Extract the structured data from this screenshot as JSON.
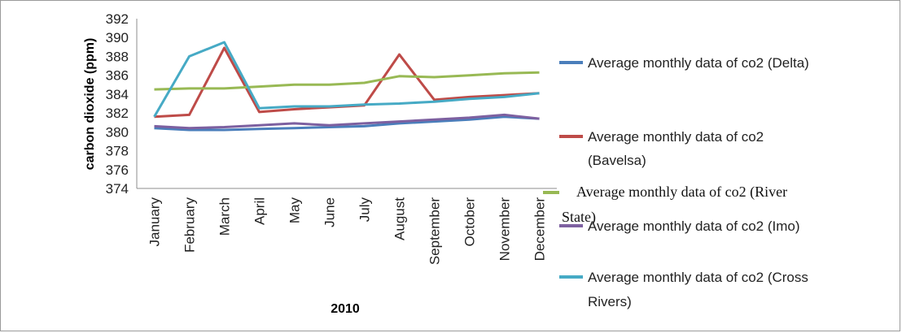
{
  "chart_data": {
    "type": "line",
    "title": "",
    "xlabel": "2010",
    "ylabel": "carbon dioxide (ppm)",
    "categories": [
      "January",
      "February",
      "March",
      "April",
      "May",
      "June",
      "July",
      "August",
      "September",
      "October",
      "November",
      "December"
    ],
    "ylim": [
      374,
      392
    ],
    "yticks": [
      374,
      376,
      378,
      380,
      382,
      384,
      386,
      388,
      390,
      392
    ],
    "grid": false,
    "legend_position": "right",
    "series": [
      {
        "name": "Average monthly data of co2 (Delta)",
        "color": "#4a7ebb",
        "values": [
          380.4,
          380.2,
          380.2,
          380.3,
          380.4,
          380.5,
          380.6,
          380.9,
          381.1,
          381.3,
          381.6,
          381.4
        ]
      },
      {
        "name": "Average monthly data of co2 (Bavelsa)",
        "color": "#be4b48",
        "values": [
          381.6,
          381.8,
          388.9,
          382.1,
          382.4,
          382.6,
          382.8,
          388.2,
          383.4,
          383.7,
          383.9,
          384.1
        ]
      },
      {
        "name": "Average monthly data of co2 (River State)",
        "color": "#98b954",
        "values": [
          384.5,
          384.6,
          384.6,
          384.8,
          385.0,
          385.0,
          385.2,
          385.9,
          385.8,
          386.0,
          386.2,
          386.3
        ]
      },
      {
        "name": "Average monthly data of co2 (Imo)",
        "color": "#7d60a0",
        "values": [
          380.6,
          380.4,
          380.5,
          380.7,
          380.9,
          380.7,
          380.9,
          381.1,
          381.3,
          381.5,
          381.8,
          381.4
        ]
      },
      {
        "name": "Average monthly data of co2 (Cross Rivers)",
        "color": "#46aac5",
        "values": [
          381.6,
          388.0,
          389.5,
          382.5,
          382.7,
          382.7,
          382.9,
          383.0,
          383.2,
          383.5,
          383.7,
          384.1
        ]
      }
    ]
  },
  "legend": {
    "entries": [
      {
        "line1": "Average monthly data of co2 (Delta)",
        "line2": ""
      },
      {
        "line1": "Average monthly data of co2",
        "line2": "(Bavelsa)"
      },
      {
        "line1": "Average monthly data of co2 (River",
        "line2": "State)"
      },
      {
        "line1": "Average monthly data of co2 (Imo)",
        "line2": ""
      },
      {
        "line1": "Average monthly data of co2 (Cross",
        "line2": "Rivers)"
      }
    ]
  }
}
